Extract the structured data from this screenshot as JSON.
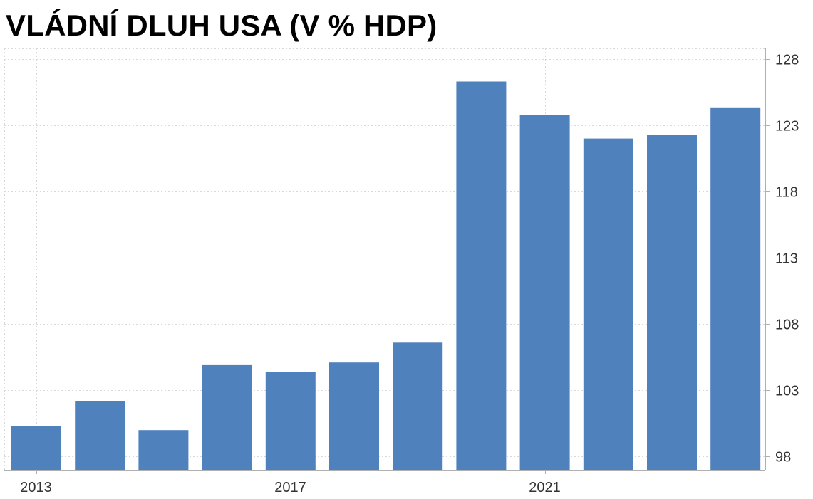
{
  "title": "VLÁDNÍ DLUH USA (V % HDP)",
  "chart_data": {
    "type": "bar",
    "title": "VLÁDNÍ DLUH USA (V % HDP)",
    "xlabel": "",
    "ylabel": "",
    "categories": [
      "2013",
      "2014",
      "2015",
      "2016",
      "2017",
      "2018",
      "2019",
      "2020",
      "2021",
      "2022",
      "2023",
      "2024"
    ],
    "values": [
      100.3,
      102.2,
      100.0,
      104.9,
      104.4,
      105.1,
      106.6,
      126.3,
      123.8,
      122.0,
      122.3,
      124.3
    ],
    "x_tick_labels": [
      "2013",
      "2017",
      "2021"
    ],
    "y_ticks": [
      98,
      103,
      108,
      113,
      118,
      123,
      128
    ],
    "ylim": [
      97.0,
      128.8
    ],
    "y_axis_position": "right",
    "grid": true,
    "bar_color": "#4f81bd"
  }
}
